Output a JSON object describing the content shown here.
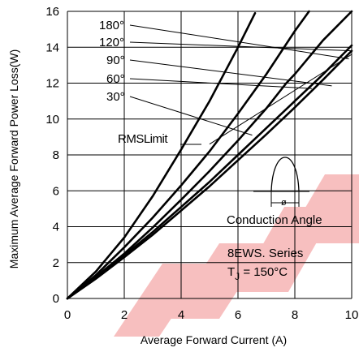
{
  "chart_data": {
    "type": "line",
    "xlabel": "Average Forward Current (A)",
    "ylabel": "Maximum Average Forward Power Loss(W)",
    "xlim": [
      0,
      10
    ],
    "ylim": [
      0,
      16
    ],
    "x_ticks": [
      "0",
      "2",
      "4",
      "6",
      "8",
      "10"
    ],
    "y_ticks": [
      "0",
      "2",
      "4",
      "6",
      "8",
      "10",
      "12",
      "14",
      "16"
    ],
    "grid": true,
    "series": [
      {
        "name": "180°",
        "x": [
          0,
          1,
          2,
          3,
          4,
          5,
          6,
          7,
          8,
          9,
          10
        ],
        "y": [
          0,
          1.15,
          2.4,
          3.7,
          5.1,
          6.5,
          8.0,
          9.5,
          11.0,
          12.5,
          14.1
        ]
      },
      {
        "name": "120°",
        "x": [
          0,
          1,
          2,
          3,
          4,
          5,
          6,
          7,
          8,
          9,
          10
        ],
        "y": [
          0,
          1.1,
          2.3,
          3.55,
          4.9,
          6.25,
          7.7,
          9.15,
          10.65,
          12.2,
          13.8
        ]
      },
      {
        "name": "90°",
        "x": [
          0,
          1,
          2,
          3,
          4,
          5,
          6,
          7,
          7.7,
          8,
          9,
          10
        ],
        "y": [
          0,
          1.2,
          2.5,
          3.95,
          5.5,
          7.1,
          8.8,
          10.6,
          12.0,
          12.5,
          14.4,
          16.0
        ]
      },
      {
        "name": "60°",
        "x": [
          0,
          1,
          2,
          3,
          4,
          5,
          6,
          7,
          8,
          8.5
        ],
        "y": [
          0,
          1.3,
          2.85,
          4.5,
          6.3,
          8.2,
          10.3,
          12.5,
          14.9,
          16.0
        ]
      },
      {
        "name": "30°",
        "x": [
          0,
          1,
          2,
          3,
          4,
          5,
          6,
          6.6
        ],
        "y": [
          0,
          1.5,
          3.4,
          5.7,
          8.3,
          11.0,
          14.0,
          15.9
        ]
      },
      {
        "name": "RMS Limit",
        "x": [
          5.0,
          10.0
        ],
        "y": [
          8.6,
          13.6
        ]
      }
    ],
    "curve_labels": [
      "180°",
      "120°",
      "90°",
      "60°",
      "30°"
    ],
    "annotations": {
      "rms_limit": "RMSLimit",
      "conduction_angle": "Conduction Angle",
      "phi": "ø",
      "series_name": "8EWS. Series",
      "tj_label": "T",
      "tj_sub": "J",
      "tj_value": " = 150°C"
    },
    "watermark": "FEP",
    "colors": {
      "line": "#000000",
      "watermark": "#f28c8c"
    }
  }
}
